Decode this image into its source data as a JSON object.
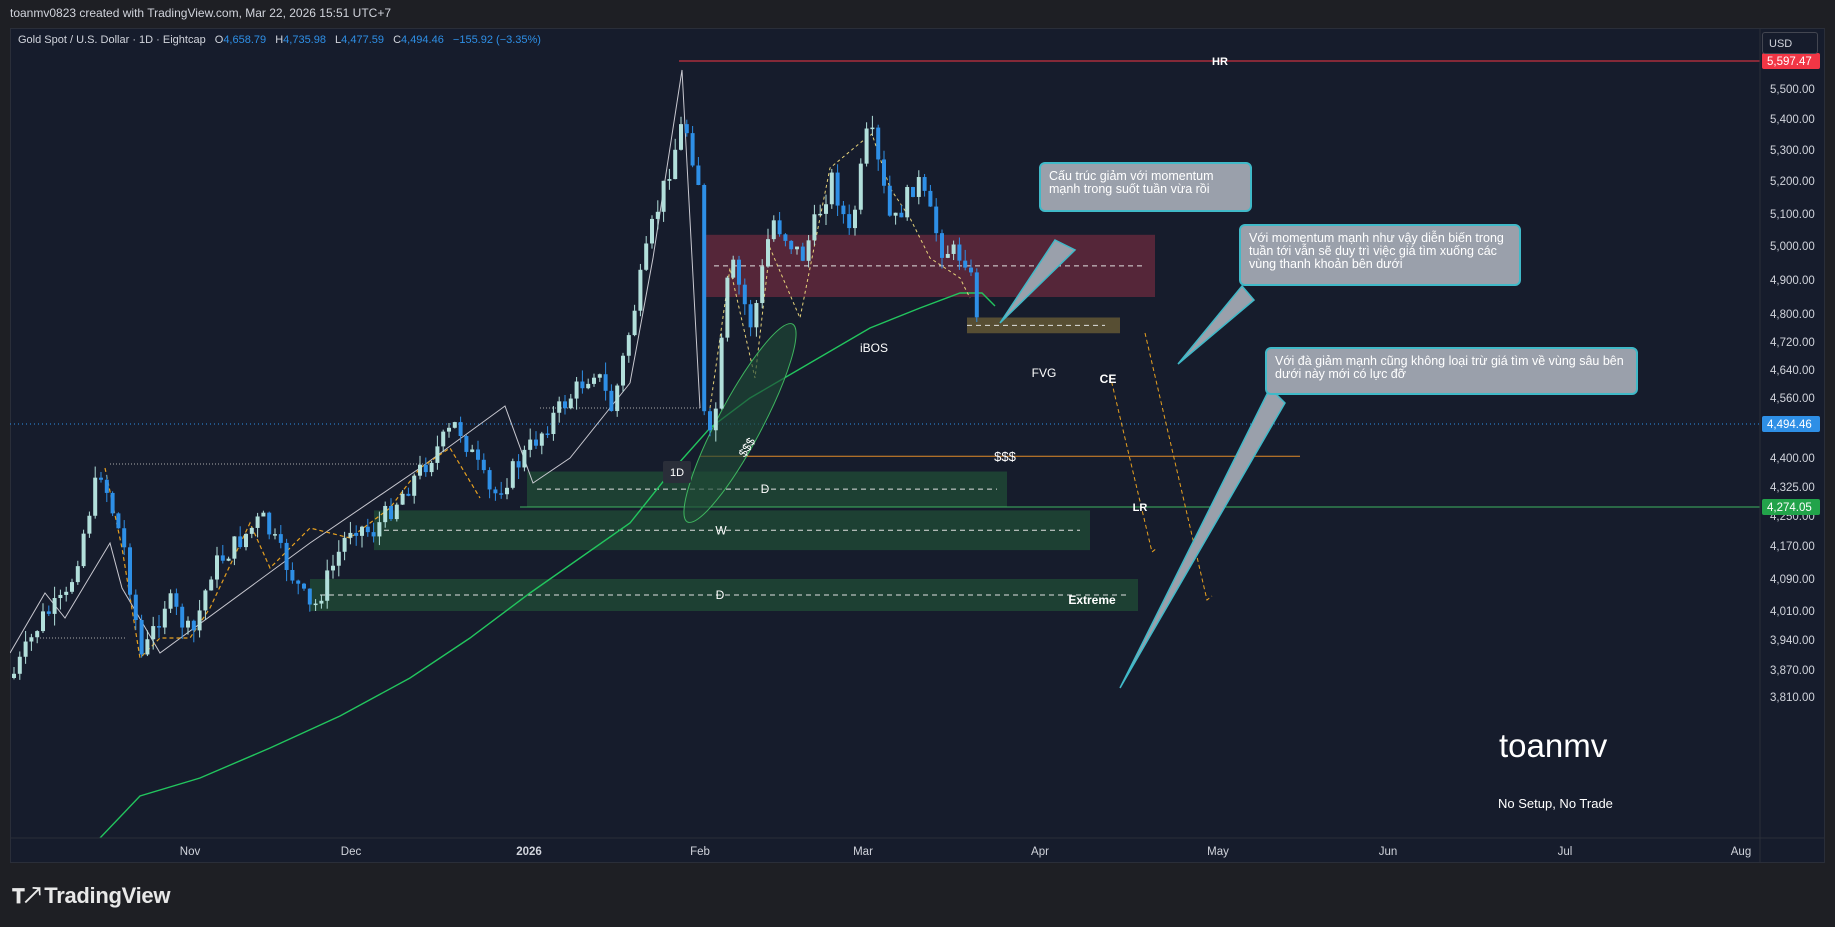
{
  "header": {
    "attribution": "toanmv0823 created with TradingView.com, Mar 22, 2026 15:51 UTC+7"
  },
  "legend": {
    "symbol": "Gold Spot / U.S. Dollar · 1D · Eightcap",
    "open_label": "O",
    "open": "4,658.79",
    "high_label": "H",
    "high": "4,735.98",
    "low_label": "L",
    "low": "4,477.59",
    "close_label": "C",
    "close": "4,494.46",
    "change": "−155.92 (−3.35%)"
  },
  "currency_button": "USD",
  "footer": {
    "logo_text": "TradingView"
  },
  "annotations": {
    "brand": "toanmv",
    "tagline": "No Setup, No Trade",
    "note_1": "Cấu trúc giảm với momentum mạnh trong suốt tuần vừa rồi",
    "note_2": "Với momentum mạnh như vậy diễn biến trong tuần tới vẫn sẽ duy trì việc giá tìm xuống các vùng thanh khoản bên dưới",
    "note_3": "Với đà giảm mạnh cũng không loại trừ giá tìm về vùng sâu bên dưới này mới có lực đỡ"
  },
  "colors": {
    "background": "#161c2c",
    "up": "#b2dfdb",
    "down": "#2e8fe6",
    "ma": "#22c55e",
    "hr": "#f23645",
    "supply_zone": "#6b2a3e",
    "demand_zone": "#1f4a36",
    "fvg_zone": "#5e5434"
  },
  "chart_data": {
    "type": "candlestick",
    "symbol": "Gold Spot / U.S. Dollar",
    "interval": "1D",
    "y_ticks": [
      "5,500.00",
      "5,400.00",
      "5,300.00",
      "5,200.00",
      "5,100.00",
      "5,000.00",
      "4,900.00",
      "4,800.00",
      "4,720.00",
      "4,640.00",
      "4,560.00",
      "4,400.00",
      "4,325.00",
      "4,250.00",
      "4,170.00",
      "4,090.00",
      "4,010.00",
      "3,940.00",
      "3,870.00",
      "3,810.00"
    ],
    "x_ticks": [
      "Nov",
      "Dec",
      "2026",
      "Feb",
      "Mar",
      "Apr",
      "May",
      "Jun",
      "Jul",
      "Aug"
    ],
    "price_tags": [
      {
        "value": "5,597.47",
        "color": "#f23645"
      },
      {
        "value": "4,494.46",
        "color": "#2e8fe6"
      },
      {
        "value": "4,274.05",
        "color": "#22a34a"
      }
    ],
    "levels": [
      {
        "label": "HR",
        "price": 5597.47
      },
      {
        "label": "$$$",
        "price": 4405
      },
      {
        "label": "LR",
        "price": 4274.05
      }
    ],
    "zones": [
      {
        "label": "iBOS",
        "top": 5035,
        "bottom": 4850
      },
      {
        "label": "FVG",
        "top": 4790,
        "bottom": 4745,
        "mid_label": "CE"
      },
      {
        "label": "D",
        "top": 4365,
        "bottom": 4275
      },
      {
        "label": "W",
        "top": 4265,
        "bottom": 4160
      },
      {
        "label": "D",
        "top": 4090,
        "bottom": 4010,
        "sub_label": "Extreme"
      }
    ],
    "zone_tag": "1D",
    "liquidity_tag": "$$$",
    "anchors": {
      "date_start": "2025-10-01",
      "x0": 0
    },
    "candles": []
  }
}
